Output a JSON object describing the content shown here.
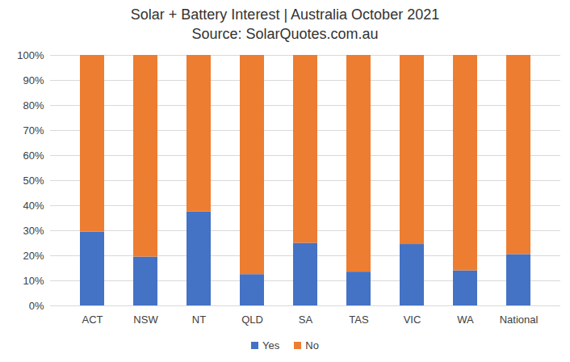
{
  "chart_data": {
    "type": "bar",
    "title": "Solar + Battery Interest | Australia October 2021",
    "subtitle": "Source: SolarQuotes.com.au",
    "categories": [
      "ACT",
      "NSW",
      "NT",
      "QLD",
      "SA",
      "TAS",
      "VIC",
      "WA",
      "National"
    ],
    "series": [
      {
        "name": "Yes",
        "color": "#4472c4",
        "values": [
          29.5,
          19.5,
          37.5,
          12.5,
          25,
          13.5,
          24.5,
          14,
          20.5
        ]
      },
      {
        "name": "No",
        "color": "#ed7d31",
        "values": [
          70.5,
          80.5,
          62.5,
          87.5,
          75,
          86.5,
          75.5,
          86,
          79.5
        ]
      }
    ],
    "ylim": [
      0,
      100
    ],
    "yticks": [
      {
        "value": 0,
        "label": "0%"
      },
      {
        "value": 10,
        "label": "10%"
      },
      {
        "value": 20,
        "label": "20%"
      },
      {
        "value": 30,
        "label": "30%"
      },
      {
        "value": 40,
        "label": "40%"
      },
      {
        "value": 50,
        "label": "50%"
      },
      {
        "value": 60,
        "label": "60%"
      },
      {
        "value": 70,
        "label": "70%"
      },
      {
        "value": 80,
        "label": "80%"
      },
      {
        "value": 90,
        "label": "90%"
      },
      {
        "value": 100,
        "label": "100%"
      }
    ],
    "grid": true,
    "stacked": true,
    "legend": "bottom"
  }
}
